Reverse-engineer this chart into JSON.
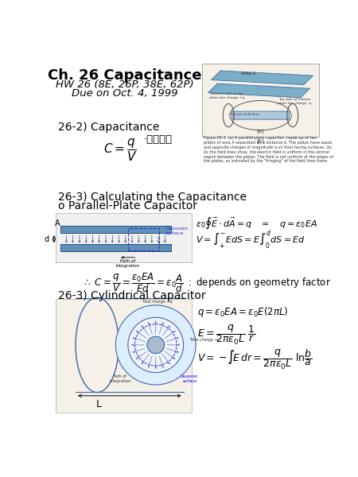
{
  "bg_color": "#ffffff",
  "title": "Ch. 26 Capacitance",
  "subtitle1": "HW 26 (8E, 26P, 38E, 62P)",
  "subtitle2": "Due on Oct. 4, 1999",
  "section1": "26-2) Capacitance",
  "section2": "26-3) Calculating the Capacitance",
  "section2b": "o Parallel-Plate Capacitor",
  "section3": "26-3) Cylindrical Capacitor",
  "fig_caption": "Figure 26-3  (a) A parallel-plate capacitor, made up of two\nplates of area A separated by a distance d. The plates have equal\nand opposite charges of magnitude q on their facing surfaces. (b)\nAs the field lines show, the electric field is uniform in the central\nregion between the plates. The field is not uniform at the edges of\nthe plates, as indicated by the \"fringing\" of the field lines there.",
  "korean": "슡전용량"
}
